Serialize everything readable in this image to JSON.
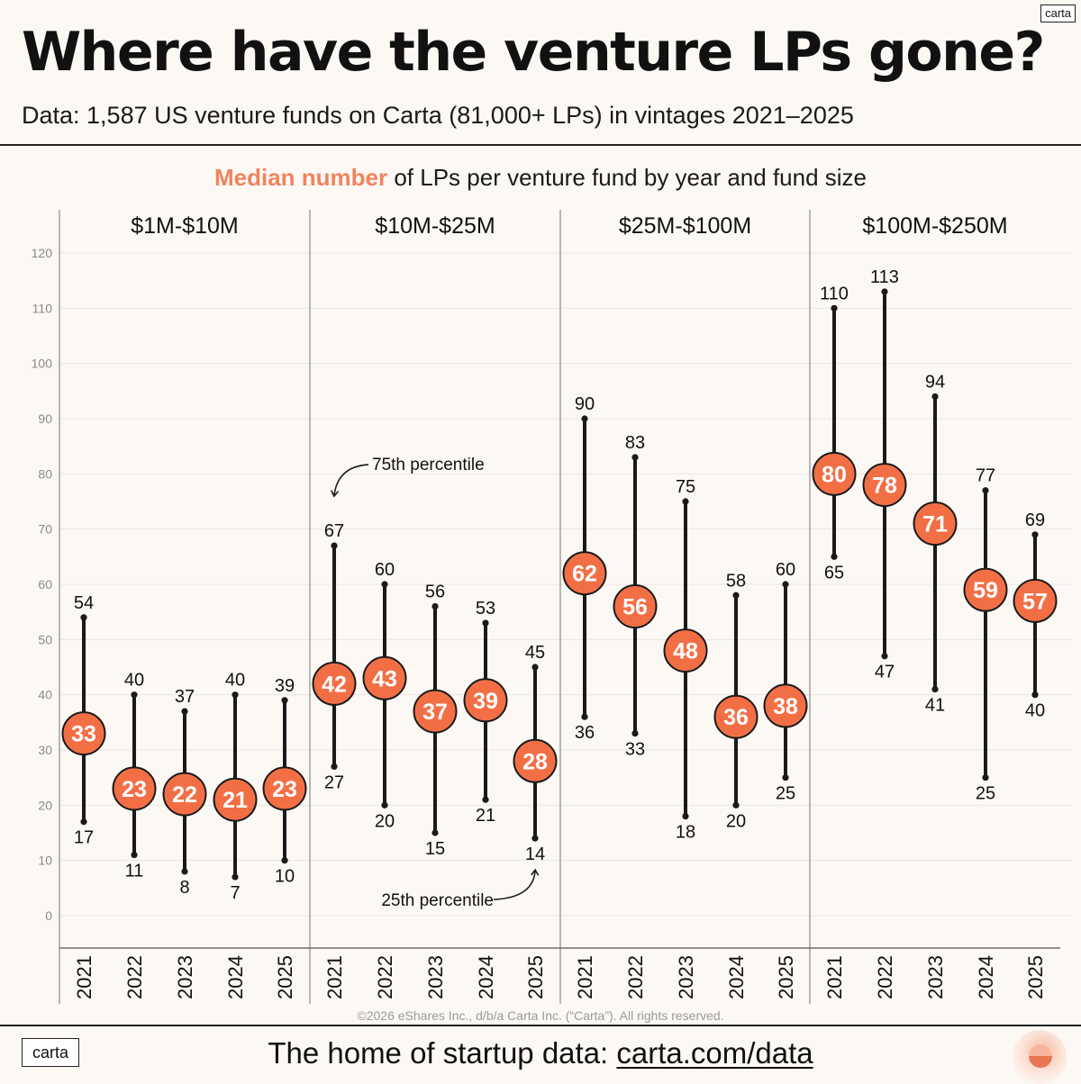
{
  "header": {
    "title": "Where have the venture LPs gone?",
    "subtitle": "Data: 1,587 US venture funds on Carta (81,000+ LPs) in vintages 2021–2025",
    "brand_tag": "carta"
  },
  "chart_title": {
    "accent": "Median number",
    "rest": " of LPs per venture fund by year and fund size"
  },
  "colors": {
    "accent": "#f0845e",
    "dot": "#f26f46",
    "whisker": "#1a1a1a",
    "grid": "#ece6e0",
    "background": "#fcf8f4"
  },
  "chart_data": {
    "type": "range-dot",
    "title": "Median number of LPs per venture fund by year and fund size",
    "ylim": [
      0,
      120
    ],
    "yticks": [
      0,
      10,
      20,
      30,
      40,
      50,
      60,
      70,
      80,
      90,
      100,
      110,
      120
    ],
    "grid": true,
    "panels": [
      {
        "label": "$1M-$10M",
        "years": [
          "2021",
          "2022",
          "2023",
          "2024",
          "2025"
        ],
        "median": [
          33,
          23,
          22,
          21,
          23
        ],
        "p25": [
          17,
          11,
          8,
          7,
          10
        ],
        "p75": [
          54,
          40,
          37,
          40,
          39
        ]
      },
      {
        "label": "$10M-$25M",
        "years": [
          "2021",
          "2022",
          "2023",
          "2024",
          "2025"
        ],
        "median": [
          42,
          43,
          37,
          39,
          28
        ],
        "p25": [
          27,
          20,
          15,
          21,
          14
        ],
        "p75": [
          67,
          60,
          56,
          53,
          45
        ]
      },
      {
        "label": "$25M-$100M",
        "years": [
          "2021",
          "2022",
          "2023",
          "2024",
          "2025"
        ],
        "median": [
          62,
          56,
          48,
          36,
          38
        ],
        "p25": [
          36,
          33,
          18,
          20,
          25
        ],
        "p75": [
          90,
          83,
          75,
          58,
          60
        ]
      },
      {
        "label": "$100M-$250M",
        "years": [
          "2021",
          "2022",
          "2023",
          "2024",
          "2025"
        ],
        "median": [
          80,
          78,
          71,
          59,
          57
        ],
        "p25": [
          65,
          47,
          41,
          25,
          40
        ],
        "p75": [
          110,
          113,
          94,
          77,
          69
        ]
      }
    ],
    "annotations": [
      {
        "text": "75th percentile",
        "panel": 1,
        "year_index": 0,
        "target": "p75"
      },
      {
        "text": "25th percentile",
        "panel": 1,
        "year_index": 4,
        "target": "p25"
      }
    ]
  },
  "copyright": "©2026 eShares Inc., d/b/a Carta Inc. (“Carta”). All rights reserved.",
  "footer": {
    "logo": "carta",
    "text": "The home of startup data: ",
    "link": "carta.com/data"
  }
}
